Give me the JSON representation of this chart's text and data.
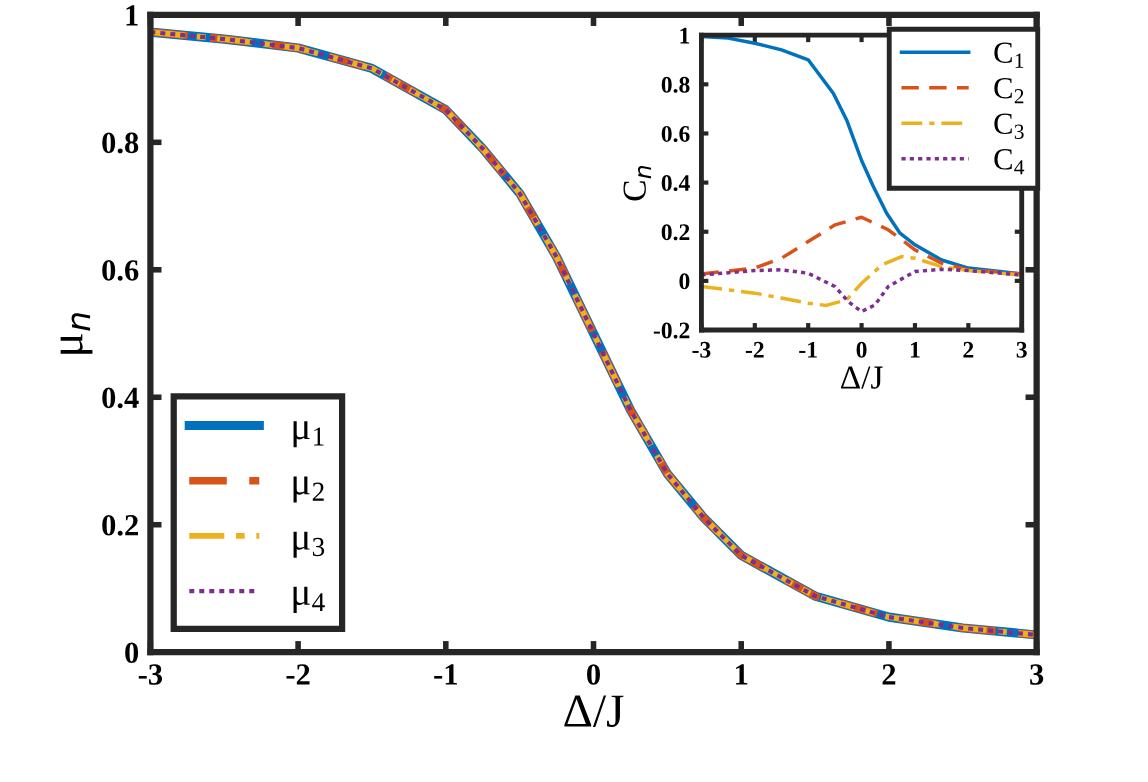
{
  "chart_data": [
    {
      "type": "line",
      "xlabel": "Δ/J",
      "ylabel": "μ$_{n}$",
      "xlim": [
        -3,
        3
      ],
      "ylim": [
        0,
        1
      ],
      "xticks": [
        -3,
        -2,
        -1,
        0,
        1,
        2,
        3
      ],
      "yticks": [
        0,
        0.2,
        0.4,
        0.6,
        0.8,
        1
      ],
      "legend": "bottom left",
      "grid": false,
      "x": [
        -3,
        -2.5,
        -2,
        -1.5,
        -1,
        -0.75,
        -0.5,
        -0.25,
        0,
        0.25,
        0.5,
        0.75,
        1,
        1.5,
        2,
        2.5,
        3
      ],
      "series": [
        {
          "name": "μ$_{1}$",
          "color": "#0072bd",
          "line_style": "solid",
          "values": [
            0.973,
            0.962,
            0.948,
            0.916,
            0.851,
            0.79,
            0.72,
            0.62,
            0.5,
            0.38,
            0.28,
            0.21,
            0.152,
            0.088,
            0.055,
            0.038,
            0.027
          ]
        },
        {
          "name": "μ$_{2}$",
          "color": "#d95319",
          "line_style": "dashed",
          "values": [
            0.973,
            0.962,
            0.948,
            0.916,
            0.851,
            0.79,
            0.72,
            0.62,
            0.5,
            0.38,
            0.28,
            0.21,
            0.152,
            0.088,
            0.055,
            0.038,
            0.027
          ]
        },
        {
          "name": "μ$_{3}$",
          "color": "#edb120",
          "line_style": "dashdot",
          "values": [
            0.973,
            0.962,
            0.948,
            0.916,
            0.851,
            0.79,
            0.72,
            0.62,
            0.5,
            0.38,
            0.28,
            0.21,
            0.152,
            0.088,
            0.055,
            0.038,
            0.027
          ]
        },
        {
          "name": "μ$_{4}$",
          "color": "#7e2f8e",
          "line_style": "dotted",
          "values": [
            0.973,
            0.962,
            0.948,
            0.916,
            0.851,
            0.79,
            0.72,
            0.62,
            0.5,
            0.38,
            0.28,
            0.21,
            0.152,
            0.088,
            0.055,
            0.038,
            0.027
          ]
        }
      ]
    },
    {
      "type": "line",
      "xlabel": "Δ/J",
      "ylabel": "C$_{n}$",
      "xlim": [
        -3,
        3
      ],
      "ylim": [
        -0.2,
        1
      ],
      "xticks": [
        -3,
        -2,
        -1,
        0,
        1,
        2,
        3
      ],
      "yticks": [
        -0.2,
        0,
        0.2,
        0.4,
        0.6,
        0.8,
        1
      ],
      "legend": "top right",
      "grid": false,
      "series": [
        {
          "name": "C$_{1}$",
          "color": "#0072bd",
          "line_style": "solid",
          "x": [
            -3,
            -2.5,
            -2,
            -1.5,
            -1,
            -0.53,
            -0.28,
            0,
            0.22,
            0.47,
            0.72,
            1,
            1.5,
            2,
            3
          ],
          "values": [
            0.995,
            0.988,
            0.967,
            0.94,
            0.9,
            0.764,
            0.655,
            0.49,
            0.384,
            0.275,
            0.194,
            0.147,
            0.085,
            0.052,
            0.028
          ]
        },
        {
          "name": "C$_{2}$",
          "color": "#d95319",
          "line_style": "dashed",
          "x": [
            -3,
            -2,
            -1.5,
            -1,
            -0.5,
            0,
            0.5,
            1,
            1.5,
            2,
            3
          ],
          "values": [
            0.028,
            0.052,
            0.092,
            0.16,
            0.228,
            0.259,
            0.208,
            0.126,
            0.072,
            0.045,
            0.028
          ]
        },
        {
          "name": "C$_{3}$",
          "color": "#edb120",
          "line_style": "dashdot",
          "x": [
            -3,
            -2,
            -1.5,
            -1,
            -0.66,
            -0.28,
            0,
            0.38,
            0.75,
            1,
            1.5,
            2,
            3
          ],
          "values": [
            -0.023,
            -0.05,
            -0.07,
            -0.091,
            -0.1,
            -0.077,
            -0.01,
            0.065,
            0.099,
            0.092,
            0.058,
            0.042,
            0.024
          ]
        },
        {
          "name": "C$_{4}$",
          "color": "#7e2f8e",
          "line_style": "dotted",
          "x": [
            -3,
            -2,
            -1.5,
            -1,
            -0.5,
            -0.25,
            0,
            0.25,
            0.5,
            1,
            1.5,
            2,
            3
          ],
          "values": [
            0.024,
            0.042,
            0.045,
            0.031,
            -0.023,
            -0.084,
            -0.125,
            -0.098,
            -0.023,
            0.038,
            0.047,
            0.042,
            0.024
          ]
        }
      ]
    }
  ]
}
